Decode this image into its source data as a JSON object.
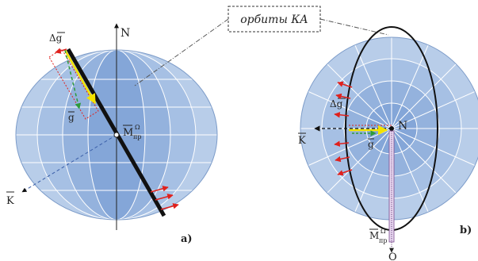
{
  "callout": {
    "text": "орбиты КА"
  },
  "panel_a": {
    "tag": "a)",
    "north": "N",
    "vector_K": "K",
    "vector_g": "g",
    "delta_g": "Δg",
    "moment_main": "M",
    "moment_sup": "Ω",
    "moment_sub": "пр"
  },
  "panel_b": {
    "tag": "b)",
    "north": "N",
    "vector_K": "K",
    "vector_g": "g",
    "delta_g": "Δg",
    "moment_main": "M",
    "moment_sup": "Ω",
    "moment_sub": "пр",
    "axis_O": "O"
  },
  "colors": {
    "globe_light": "#b8cde9",
    "globe_mid": "#94b2dd",
    "globe_dark": "#6f95cf",
    "grid": "#ffffff",
    "vector_yellow": "#f4e300",
    "vector_green": "#2e9a3a",
    "arrow_red": "#e0211d",
    "orbit": "#111111"
  }
}
